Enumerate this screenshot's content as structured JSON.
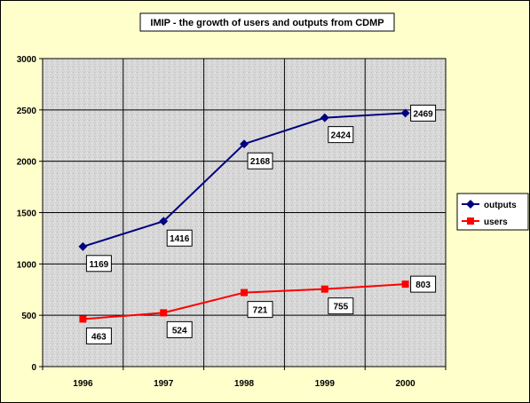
{
  "chart_data": {
    "type": "line",
    "title": "IMIP - the growth of users and outputs from CDMP",
    "xlabel": "",
    "ylabel": "",
    "categories": [
      "1996",
      "1997",
      "1998",
      "1999",
      "2000"
    ],
    "ylim": [
      0,
      3000
    ],
    "yticks": [
      0,
      500,
      1000,
      1500,
      2000,
      2500,
      3000
    ],
    "grid": true,
    "legend_position": "right",
    "series": [
      {
        "name": "outputs",
        "color": "#000080",
        "marker": "diamond",
        "values": [
          1169,
          1416,
          2168,
          2424,
          2469
        ]
      },
      {
        "name": "users",
        "color": "#ff0000",
        "marker": "square",
        "values": [
          463,
          524,
          721,
          755,
          803
        ]
      }
    ],
    "colors": {
      "background": "#ffffcc",
      "plot_area": "#d9d9d9"
    }
  }
}
